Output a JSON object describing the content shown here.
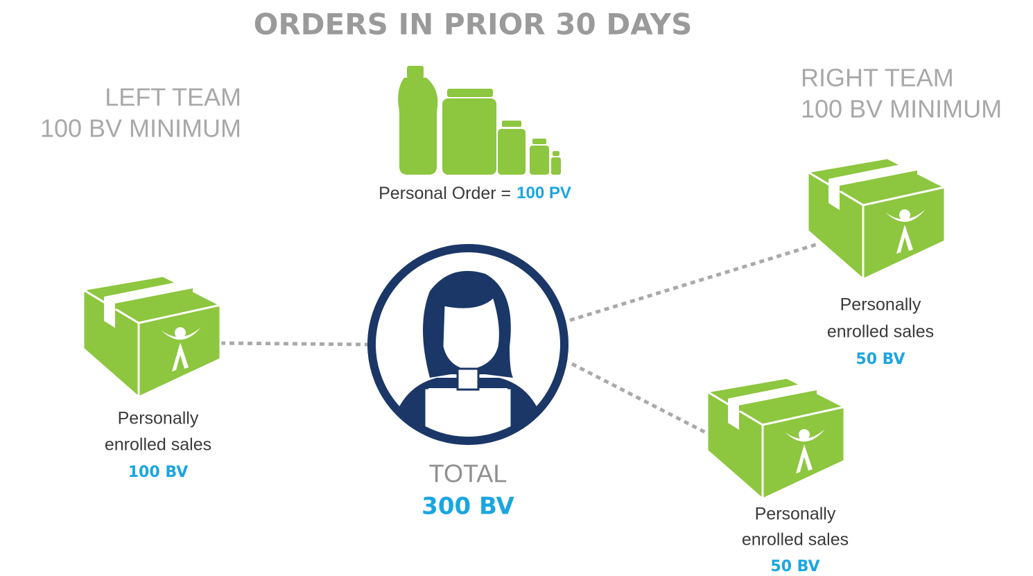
{
  "header": {
    "title": "ORDERS IN PRIOR 30 DAYS"
  },
  "left_team": {
    "label": "LEFT TEAM",
    "requirement": "100 BV MINIMUM"
  },
  "right_team": {
    "label": "RIGHT TEAM",
    "requirement": "100 BV MINIMUM"
  },
  "personal_order": {
    "label": "Personal Order =",
    "value": "100 PV"
  },
  "total": {
    "label": "TOTAL",
    "value": "300 BV"
  },
  "nodes": [
    {
      "caption_1": "Personally",
      "caption_2": "enrolled sales",
      "value": "100 BV"
    },
    {
      "caption_1": "Personally",
      "caption_2": "enrolled sales",
      "value": "50 BV"
    },
    {
      "caption_1": "Personally",
      "caption_2": "enrolled sales",
      "value": "50 BV"
    }
  ]
}
